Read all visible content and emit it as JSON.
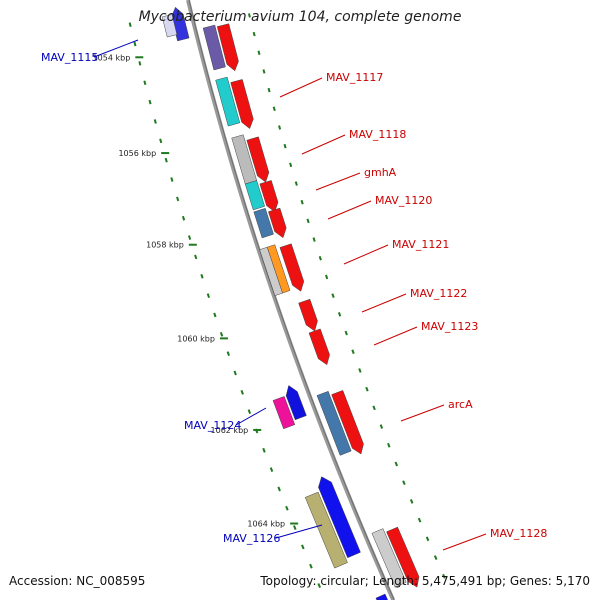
{
  "title": "Mycobacterium avium 104, complete genome",
  "footer": {
    "accession": "Accession: NC_008595",
    "topology": "Topology: circular; Length: 5,475,491 bp; Genes: 5,170"
  },
  "colors": {
    "forward_label": "#cc0000",
    "reverse_label": "#0000bb",
    "backbone": "#888888",
    "tick": "#1f7a1f"
  },
  "ticks": [
    {
      "label": "1054 kbp"
    },
    {
      "label": "1056 kbp"
    },
    {
      "label": "1058 kbp"
    },
    {
      "label": "1060 kbp"
    },
    {
      "label": "1062 kbp"
    },
    {
      "label": "1064 kbp"
    }
  ],
  "gene_labels": [
    {
      "label": "MAV_1115",
      "strand": "reverse"
    },
    {
      "label": "MAV_1117",
      "strand": "forward"
    },
    {
      "label": "MAV_1118",
      "strand": "forward"
    },
    {
      "label": "gmhA",
      "strand": "forward"
    },
    {
      "label": "MAV_1120",
      "strand": "forward"
    },
    {
      "label": "MAV_1121",
      "strand": "forward"
    },
    {
      "label": "MAV_1122",
      "strand": "forward"
    },
    {
      "label": "MAV_1123",
      "strand": "forward"
    },
    {
      "label": "arcA",
      "strand": "forward"
    },
    {
      "label": "MAV_1124",
      "strand": "reverse"
    },
    {
      "label": "MAV_1126",
      "strand": "reverse"
    },
    {
      "label": "MAV_1128",
      "strand": "forward"
    }
  ]
}
